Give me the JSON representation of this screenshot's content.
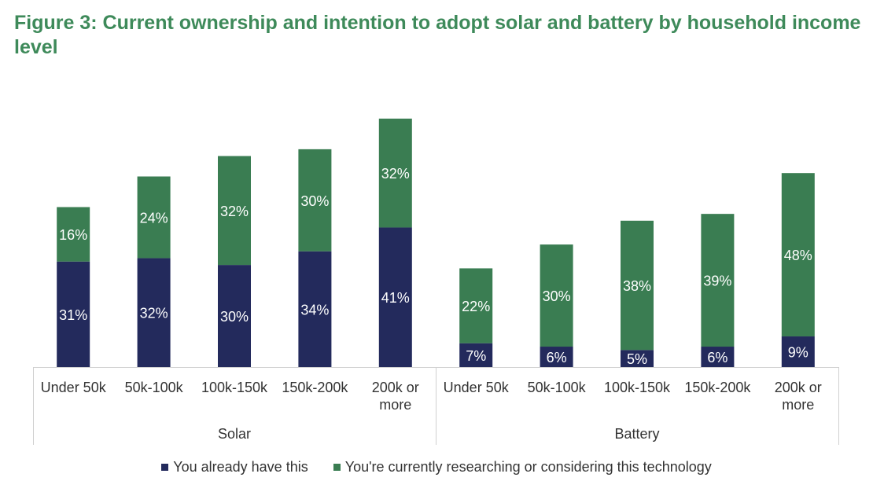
{
  "title": "Figure 3: Current ownership and intention to adopt solar and battery by household income level",
  "chart_data": {
    "type": "bar",
    "stacked": true,
    "groups": [
      {
        "name": "Solar",
        "categories": [
          "Under 50k",
          "50k-100k",
          "100k-150k",
          "150k-200k",
          "200k or more"
        ],
        "series": [
          {
            "name": "You already have this",
            "values": [
              31,
              32,
              30,
              34,
              41
            ],
            "labels": [
              "31%",
              "32%",
              "30%",
              "34%",
              "41%"
            ]
          },
          {
            "name": "You're currently researching or considering this technology",
            "values": [
              16,
              24,
              32,
              30,
              32
            ],
            "labels": [
              "16%",
              "24%",
              "32%",
              "30%",
              "32%"
            ]
          }
        ]
      },
      {
        "name": "Battery",
        "categories": [
          "Under 50k",
          "50k-100k",
          "100k-150k",
          "150k-200k",
          "200k or more"
        ],
        "series": [
          {
            "name": "You already have this",
            "values": [
              7,
              6,
              5,
              6,
              9
            ],
            "labels": [
              "7%",
              "6%",
              "5%",
              "6%",
              "9%"
            ]
          },
          {
            "name": "You're currently researching or considering this technology",
            "values": [
              22,
              30,
              38,
              39,
              48
            ],
            "labels": [
              "22%",
              "30%",
              "38%",
              "39%",
              "48%"
            ]
          }
        ]
      }
    ],
    "colors": {
      "have": "#232a5c",
      "considering": "#3a7d52"
    },
    "ylim": [
      0,
      75
    ],
    "grid": false,
    "legend_position": "bottom"
  },
  "legend": {
    "items": [
      {
        "label": "You already have this",
        "color": "#232a5c"
      },
      {
        "label": "You're currently researching or considering this technology",
        "color": "#3a7d52"
      }
    ]
  }
}
